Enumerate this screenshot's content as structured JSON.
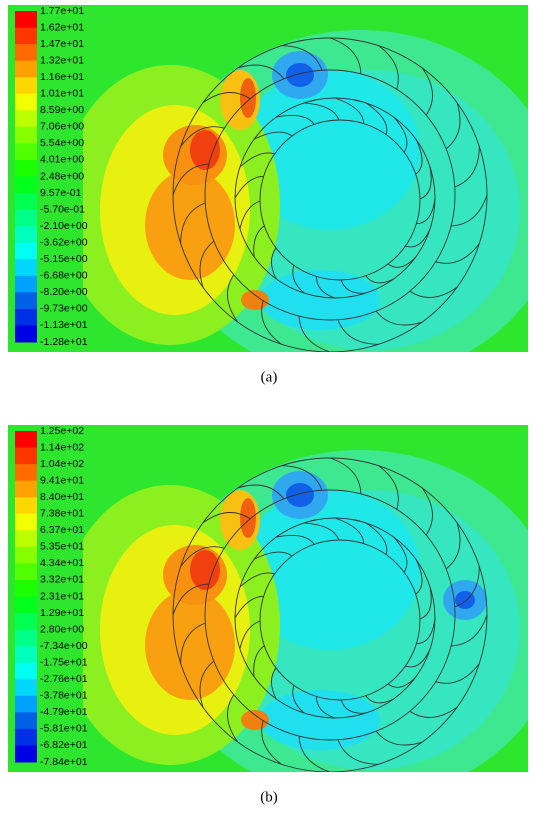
{
  "panels": [
    {
      "colorbar_labels": [
        "1.77e+01",
        "1.62e+01",
        "1.47e+01",
        "1.32e+01",
        "1.16e+01",
        "1.01e+01",
        "8.59e+00",
        "7.06e+00",
        "5.54e+00",
        "4.01e+00",
        "2.48e+00",
        "9.57e-01",
        "-5.70e-01",
        "-2.10e+00",
        "-3.62e+00",
        "-5.15e+00",
        "-6.68e+00",
        "-8.20e+00",
        "-9.73e+00",
        "-1.13e+01",
        "-1.28e+01"
      ],
      "caption": "(a)"
    },
    {
      "colorbar_labels": [
        "1.25e+02",
        "1.14e+02",
        "1.04e+02",
        "9.41e+01",
        "8.40e+01",
        "7.38e+01",
        "6.37e+01",
        "5.35e+01",
        "4.34e+01",
        "3.32e+01",
        "2.31e+01",
        "1.29e+01",
        "2.80e+00",
        "-7.34e+00",
        "-1.75e+01",
        "-2.76e+01",
        "-3.78e+01",
        "-4.79e+01",
        "-5.81e+01",
        "-6.82e+01",
        "-7.84e+01"
      ],
      "caption": "(b)"
    }
  ]
}
